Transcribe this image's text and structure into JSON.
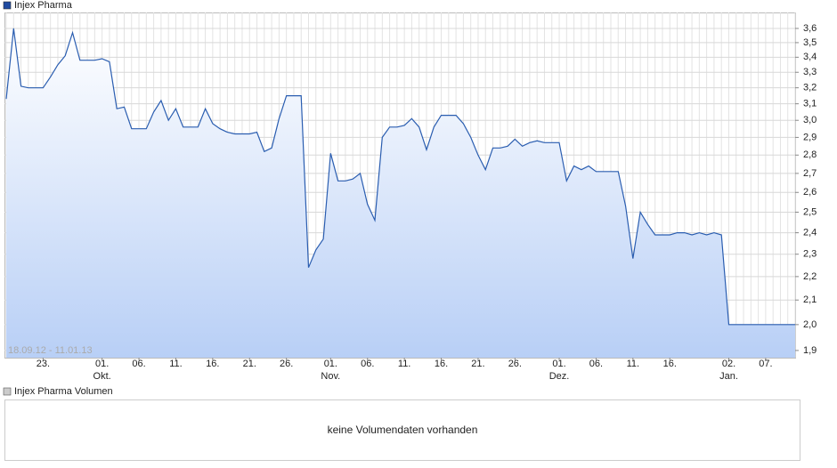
{
  "chart_data": {
    "type": "line",
    "log_scale": true,
    "grid": true,
    "date_range": "18.09.12 - 11.01.13",
    "categories": [
      null,
      null,
      null,
      null,
      null,
      "23.",
      null,
      null,
      null,
      null,
      null,
      null,
      null,
      "01.",
      null,
      null,
      null,
      null,
      "06.",
      null,
      null,
      null,
      null,
      "11.",
      null,
      null,
      null,
      null,
      "16.",
      null,
      null,
      null,
      null,
      "21.",
      null,
      null,
      null,
      null,
      "26.",
      null,
      null,
      null,
      null,
      null,
      "01.",
      null,
      null,
      null,
      null,
      "06.",
      null,
      null,
      null,
      null,
      "11.",
      null,
      null,
      null,
      null,
      "16.",
      null,
      null,
      null,
      null,
      "21.",
      null,
      null,
      null,
      null,
      "26.",
      null,
      null,
      null,
      null,
      null,
      "01.",
      null,
      null,
      null,
      null,
      "06.",
      null,
      null,
      null,
      null,
      "11.",
      null,
      null,
      null,
      null,
      "16.",
      null,
      null,
      null,
      null,
      null,
      null,
      null,
      "02.",
      null,
      null,
      null,
      null,
      "07.",
      null,
      null,
      null,
      null
    ],
    "months": [
      null,
      null,
      null,
      null,
      null,
      null,
      null,
      null,
      null,
      null,
      null,
      null,
      null,
      "Okt.",
      null,
      null,
      null,
      null,
      null,
      null,
      null,
      null,
      null,
      null,
      null,
      null,
      null,
      null,
      null,
      null,
      null,
      null,
      null,
      null,
      null,
      null,
      null,
      null,
      null,
      null,
      null,
      null,
      null,
      null,
      "Nov.",
      null,
      null,
      null,
      null,
      null,
      null,
      null,
      null,
      null,
      null,
      null,
      null,
      null,
      null,
      null,
      null,
      null,
      null,
      null,
      null,
      null,
      null,
      null,
      null,
      null,
      null,
      null,
      null,
      null,
      null,
      "Dez.",
      null,
      null,
      null,
      null,
      null,
      null,
      null,
      null,
      null,
      null,
      null,
      null,
      null,
      null,
      null,
      null,
      null,
      null,
      null,
      null,
      null,
      null,
      "Jan.",
      null,
      null,
      null,
      null,
      null,
      null,
      null,
      null,
      null
    ],
    "series": [
      {
        "name": "Injex Pharma",
        "color": "#2a5db0",
        "values": [
          3.13,
          3.6,
          3.21,
          3.2,
          3.2,
          3.2,
          3.27,
          3.35,
          3.41,
          3.57,
          3.38,
          3.38,
          3.38,
          3.39,
          3.37,
          3.07,
          3.08,
          2.95,
          2.95,
          2.95,
          3.05,
          3.12,
          3.0,
          3.07,
          2.96,
          2.96,
          2.96,
          3.07,
          2.98,
          2.95,
          2.93,
          2.92,
          2.92,
          2.92,
          2.93,
          2.82,
          2.84,
          3.01,
          3.15,
          3.15,
          3.15,
          2.24,
          2.32,
          2.37,
          2.81,
          2.66,
          2.66,
          2.67,
          2.7,
          2.54,
          2.46,
          2.9,
          2.96,
          2.96,
          2.97,
          3.01,
          2.96,
          2.83,
          2.96,
          3.03,
          3.03,
          3.03,
          2.98,
          2.9,
          2.8,
          2.72,
          2.84,
          2.84,
          2.85,
          2.89,
          2.85,
          2.87,
          2.88,
          2.87,
          2.87,
          2.87,
          2.66,
          2.74,
          2.72,
          2.74,
          2.71,
          2.71,
          2.71,
          2.71,
          2.53,
          2.28,
          2.5,
          2.44,
          2.39,
          2.39,
          2.39,
          2.4,
          2.4,
          2.39,
          2.4,
          2.39,
          2.4,
          2.39,
          2.0,
          2.0,
          2.0,
          2.0,
          2.0,
          2.0,
          2.0,
          2.0,
          2.0,
          2.0
        ]
      }
    ],
    "ylim": [
      1.873,
      3.716
    ],
    "yticks": [
      {
        "value": 3.6,
        "label": "3,6"
      },
      {
        "value": 3.5,
        "label": "3,5"
      },
      {
        "value": 3.4,
        "label": "3,4"
      },
      {
        "value": 3.3,
        "label": "3,3"
      },
      {
        "value": 3.2,
        "label": "3,2"
      },
      {
        "value": 3.1,
        "label": "3,1"
      },
      {
        "value": 3.0,
        "label": "3,0"
      },
      {
        "value": 2.9,
        "label": "2,9"
      },
      {
        "value": 2.8,
        "label": "2,8"
      },
      {
        "value": 2.7,
        "label": "2,7"
      },
      {
        "value": 2.6,
        "label": "2,6"
      },
      {
        "value": 2.5,
        "label": "2,5"
      },
      {
        "value": 2.4,
        "label": "2,4"
      },
      {
        "value": 2.3,
        "label": "2,3"
      },
      {
        "value": 2.2,
        "label": "2,2"
      },
      {
        "value": 2.1,
        "label": "2,1"
      },
      {
        "value": 2.0,
        "label": "2,0"
      },
      {
        "value": 1.9,
        "label": "1,9"
      }
    ]
  },
  "volume": {
    "title": "Injex Pharma Volumen",
    "message": "keine Volumendaten vorhanden"
  }
}
